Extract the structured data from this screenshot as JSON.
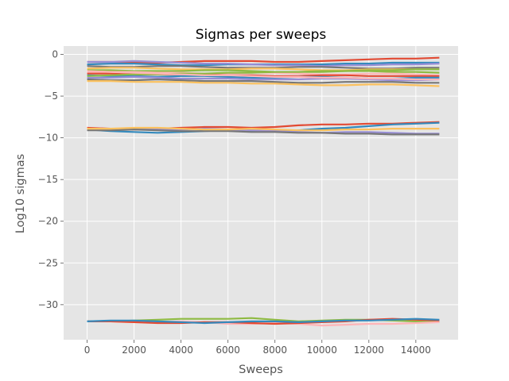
{
  "chart_data": {
    "type": "line",
    "title": "Sigmas per sweeps",
    "xlabel": "Sweeps",
    "ylabel": "Log10 sigmas",
    "xlim": [
      -1000,
      15800
    ],
    "ylim": [
      -34.2,
      1.0
    ],
    "x_ticks": [
      0,
      2000,
      4000,
      6000,
      8000,
      10000,
      12000,
      14000
    ],
    "x_tick_labels": [
      "0",
      "2000",
      "4000",
      "6000",
      "8000",
      "10000",
      "12000",
      "14000"
    ],
    "y_ticks": [
      0,
      -5,
      -10,
      -15,
      -20,
      -25,
      -30
    ],
    "y_tick_labels": [
      "0",
      "−5",
      "−10",
      "−15",
      "−20",
      "−25",
      "−30"
    ],
    "grid": true,
    "style": "ggplot",
    "background_color": "#e5e5e5",
    "palette": [
      "#e24a33",
      "#348abd",
      "#988ed5",
      "#777777",
      "#fbc15e",
      "#8eba42",
      "#ffb5b8"
    ],
    "x": [
      0,
      1000,
      2000,
      3000,
      4000,
      5000,
      6000,
      7000,
      8000,
      9000,
      10000,
      11000,
      12000,
      13000,
      14000,
      15000
    ],
    "series": [
      {
        "values": [
          -0.9,
          -0.9,
          -1.0,
          -1.0,
          -0.9,
          -0.8,
          -0.8,
          -0.8,
          -0.9,
          -0.9,
          -0.8,
          -0.7,
          -0.6,
          -0.5,
          -0.5,
          -0.4
        ]
      },
      {
        "values": [
          -1.2,
          -1.1,
          -1.1,
          -1.2,
          -1.3,
          -1.3,
          -1.2,
          -1.2,
          -1.2,
          -1.2,
          -1.2,
          -1.1,
          -1.1,
          -1.0,
          -1.0,
          -1.0
        ]
      },
      {
        "values": [
          -0.9,
          -0.9,
          -0.8,
          -0.9,
          -1.0,
          -1.1,
          -1.1,
          -1.2,
          -1.3,
          -1.3,
          -1.4,
          -1.3,
          -1.3,
          -1.2,
          -1.2,
          -1.1
        ]
      },
      {
        "values": [
          -1.4,
          -1.5,
          -1.5,
          -1.4,
          -1.4,
          -1.5,
          -1.6,
          -1.6,
          -1.6,
          -1.5,
          -1.5,
          -1.6,
          -1.7,
          -1.7,
          -1.6,
          -1.6
        ]
      },
      {
        "values": [
          -1.7,
          -1.6,
          -1.6,
          -1.7,
          -1.8,
          -1.8,
          -1.8,
          -1.7,
          -1.7,
          -1.8,
          -1.9,
          -1.9,
          -1.8,
          -1.8,
          -1.8,
          -1.8
        ]
      },
      {
        "values": [
          -1.9,
          -1.9,
          -2.0,
          -2.0,
          -2.0,
          -1.9,
          -1.9,
          -2.0,
          -2.1,
          -2.1,
          -2.1,
          -2.0,
          -2.0,
          -2.1,
          -2.1,
          -2.2
        ]
      },
      {
        "values": [
          -2.1,
          -2.1,
          -2.1,
          -2.2,
          -2.2,
          -2.3,
          -2.3,
          -2.2,
          -2.2,
          -2.3,
          -2.4,
          -2.4,
          -2.3,
          -2.3,
          -2.4,
          -2.5
        ]
      },
      {
        "values": [
          -2.3,
          -2.3,
          -2.4,
          -2.4,
          -2.4,
          -2.4,
          -2.5,
          -2.5,
          -2.6,
          -2.6,
          -2.5,
          -2.5,
          -2.6,
          -2.6,
          -2.6,
          -2.6
        ]
      },
      {
        "values": [
          -2.5,
          -2.6,
          -2.6,
          -2.7,
          -2.6,
          -2.6,
          -2.7,
          -2.8,
          -2.8,
          -2.7,
          -2.7,
          -2.8,
          -2.9,
          -2.9,
          -2.8,
          -2.8
        ]
      },
      {
        "values": [
          -2.8,
          -2.8,
          -2.7,
          -2.8,
          -2.9,
          -2.9,
          -2.9,
          -3.0,
          -3.0,
          -3.0,
          -2.9,
          -2.9,
          -3.0,
          -3.1,
          -3.1,
          -3.0
        ]
      },
      {
        "values": [
          -3.0,
          -3.1,
          -3.1,
          -3.0,
          -3.1,
          -3.2,
          -3.2,
          -3.2,
          -3.3,
          -3.4,
          -3.4,
          -3.3,
          -3.3,
          -3.3,
          -3.4,
          -3.4
        ]
      },
      {
        "values": [
          -3.2,
          -3.2,
          -3.3,
          -3.3,
          -3.3,
          -3.4,
          -3.4,
          -3.5,
          -3.5,
          -3.6,
          -3.7,
          -3.7,
          -3.6,
          -3.6,
          -3.7,
          -3.8
        ]
      },
      {
        "values": [
          -2.6,
          -2.5,
          -2.4,
          -2.4,
          -2.3,
          -2.3,
          -2.2,
          -2.2,
          -2.1,
          -2.1,
          -2.0,
          -2.0,
          -1.9,
          -1.9,
          -1.8,
          -1.8
        ]
      },
      {
        "values": [
          -2.0,
          -2.1,
          -2.2,
          -2.3,
          -2.4,
          -2.5,
          -2.5,
          -2.6,
          -2.7,
          -2.7,
          -2.8,
          -2.8,
          -2.9,
          -2.9,
          -3.0,
          -3.0
        ]
      },
      {
        "values": [
          -8.8,
          -8.9,
          -9.0,
          -8.9,
          -8.8,
          -8.7,
          -8.7,
          -8.8,
          -8.7,
          -8.5,
          -8.4,
          -8.4,
          -8.3,
          -8.3,
          -8.2,
          -8.1
        ]
      },
      {
        "values": [
          -9.0,
          -9.2,
          -9.3,
          -9.4,
          -9.3,
          -9.2,
          -9.1,
          -9.2,
          -9.2,
          -9.1,
          -8.9,
          -8.8,
          -8.6,
          -8.4,
          -8.3,
          -8.2
        ]
      },
      {
        "values": [
          -9.0,
          -8.9,
          -8.9,
          -9.0,
          -9.0,
          -8.9,
          -9.0,
          -9.1,
          -9.2,
          -9.3,
          -9.4,
          -9.3,
          -9.3,
          -9.4,
          -9.5,
          -9.5
        ]
      },
      {
        "values": [
          -9.1,
          -9.1,
          -9.0,
          -9.1,
          -9.2,
          -9.2,
          -9.2,
          -9.3,
          -9.3,
          -9.4,
          -9.4,
          -9.5,
          -9.5,
          -9.6,
          -9.6,
          -9.6
        ]
      },
      {
        "values": [
          -8.9,
          -8.9,
          -8.8,
          -8.8,
          -8.9,
          -9.0,
          -9.0,
          -8.9,
          -9.0,
          -9.1,
          -9.1,
          -9.0,
          -9.0,
          -8.9,
          -8.9,
          -8.9
        ]
      },
      {
        "values": [
          -32.0,
          -32.0,
          -31.9,
          -31.8,
          -31.7,
          -31.7,
          -31.7,
          -31.6,
          -31.8,
          -32.0,
          -31.9,
          -31.8,
          -31.8,
          -31.9,
          -32.0,
          -32.1
        ]
      },
      {
        "values": [
          -32.0,
          -32.0,
          -32.1,
          -32.1,
          -32.0,
          -32.1,
          -32.3,
          -32.3,
          -32.2,
          -32.3,
          -32.5,
          -32.4,
          -32.3,
          -32.3,
          -32.2,
          -32.1
        ]
      },
      {
        "values": [
          -32.0,
          -32.0,
          -32.1,
          -32.2,
          -32.2,
          -32.1,
          -32.1,
          -32.2,
          -32.3,
          -32.2,
          -32.1,
          -32.0,
          -31.8,
          -31.7,
          -31.8,
          -31.9
        ]
      },
      {
        "values": [
          -32.0,
          -31.9,
          -31.9,
          -32.0,
          -32.1,
          -32.2,
          -32.1,
          -32.0,
          -32.0,
          -32.1,
          -32.0,
          -31.9,
          -31.9,
          -31.8,
          -31.7,
          -31.8
        ]
      }
    ]
  }
}
